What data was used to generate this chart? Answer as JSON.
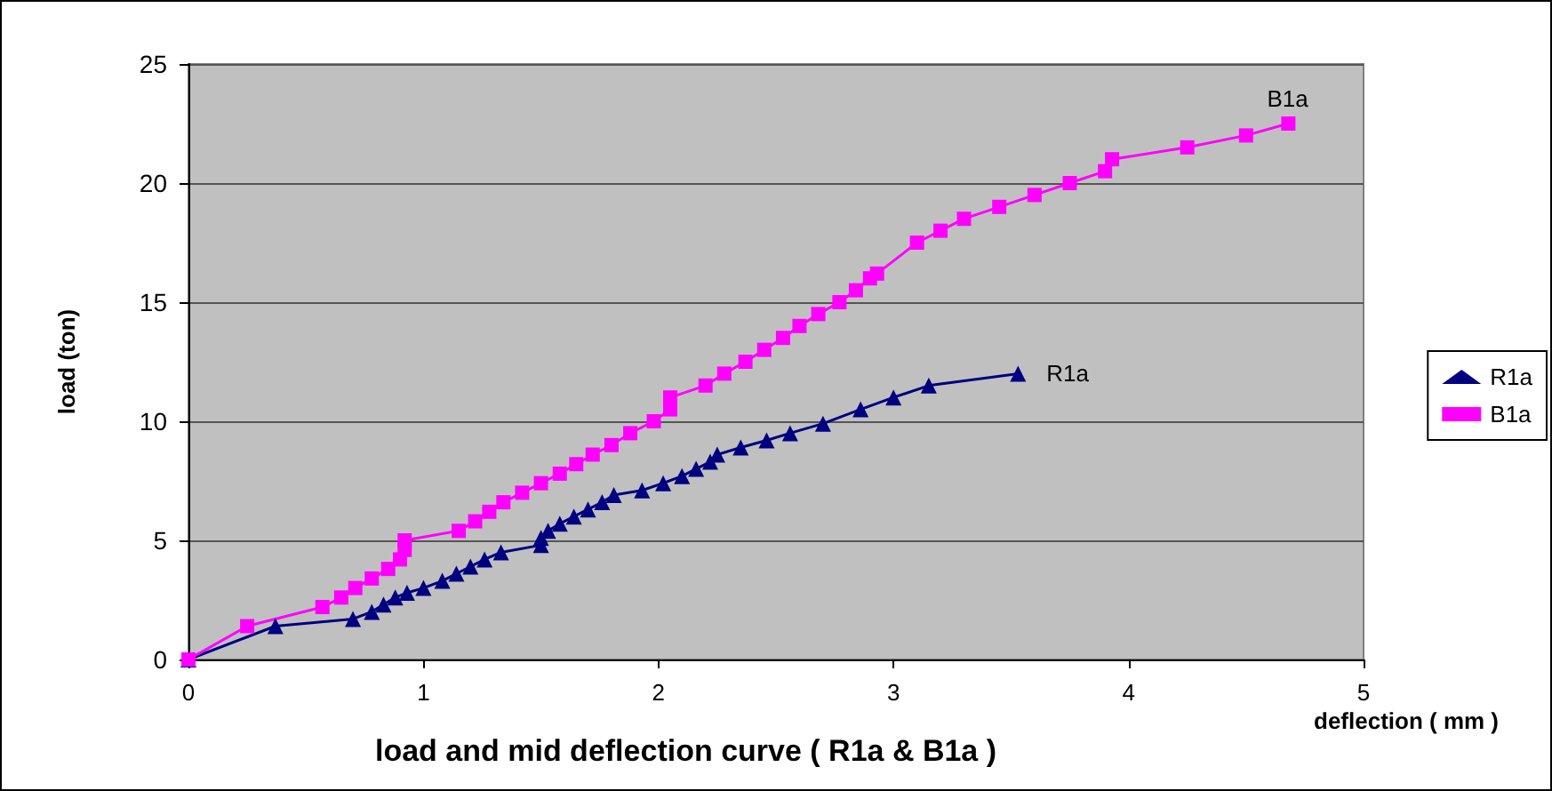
{
  "chart_data": {
    "type": "line",
    "title": "load and mid deflection curve ( R1a & B1a )",
    "xlabel": "deflection ( mm )",
    "ylabel": "load (ton)",
    "xlim": [
      0,
      5
    ],
    "xticks": [
      0,
      1,
      2,
      3,
      4,
      5
    ],
    "ylim": [
      0,
      25
    ],
    "yticks": [
      0,
      5,
      10,
      15,
      20,
      25
    ],
    "grid": "y",
    "legend": "right",
    "series": [
      {
        "name": "R1a",
        "color": "#000080",
        "marker": "triangle",
        "x": [
          0,
          0.37,
          0.7,
          0.78,
          0.83,
          0.88,
          0.93,
          1.0,
          1.08,
          1.14,
          1.2,
          1.26,
          1.33,
          1.5,
          1.5,
          1.53,
          1.58,
          1.64,
          1.7,
          1.76,
          1.81,
          1.93,
          2.02,
          2.1,
          2.16,
          2.22,
          2.25,
          2.35,
          2.46,
          2.56,
          2.7,
          2.86,
          3.0,
          3.15,
          3.53
        ],
        "values": [
          0,
          1.4,
          1.7,
          2.0,
          2.3,
          2.6,
          2.8,
          3.0,
          3.3,
          3.6,
          3.9,
          4.2,
          4.5,
          4.8,
          5.1,
          5.4,
          5.7,
          6.0,
          6.3,
          6.6,
          6.9,
          7.1,
          7.4,
          7.7,
          8.0,
          8.3,
          8.6,
          8.9,
          9.2,
          9.5,
          9.9,
          10.5,
          11.0,
          11.5,
          12.0
        ]
      },
      {
        "name": "B1a",
        "color": "#ff00ff",
        "marker": "square",
        "x": [
          0,
          0.25,
          0.57,
          0.65,
          0.71,
          0.78,
          0.85,
          0.9,
          0.92,
          0.92,
          1.15,
          1.22,
          1.28,
          1.34,
          1.42,
          1.5,
          1.58,
          1.65,
          1.72,
          1.8,
          1.88,
          1.98,
          2.05,
          2.05,
          2.2,
          2.28,
          2.37,
          2.45,
          2.53,
          2.6,
          2.68,
          2.77,
          2.84,
          2.9,
          2.93,
          3.1,
          3.2,
          3.3,
          3.45,
          3.6,
          3.75,
          3.9,
          3.93,
          4.25,
          4.5,
          4.68
        ],
        "values": [
          0,
          1.4,
          2.2,
          2.6,
          3.0,
          3.4,
          3.8,
          4.2,
          4.6,
          5.0,
          5.4,
          5.8,
          6.2,
          6.6,
          7.0,
          7.4,
          7.8,
          8.2,
          8.6,
          9.0,
          9.5,
          10.0,
          10.5,
          11.0,
          11.5,
          12.0,
          12.5,
          13.0,
          13.5,
          14.0,
          14.5,
          15.0,
          15.5,
          16.0,
          16.2,
          17.5,
          18.0,
          18.5,
          19.0,
          19.5,
          20.0,
          20.5,
          21.0,
          21.5,
          22.0,
          22.5
        ]
      }
    ]
  }
}
